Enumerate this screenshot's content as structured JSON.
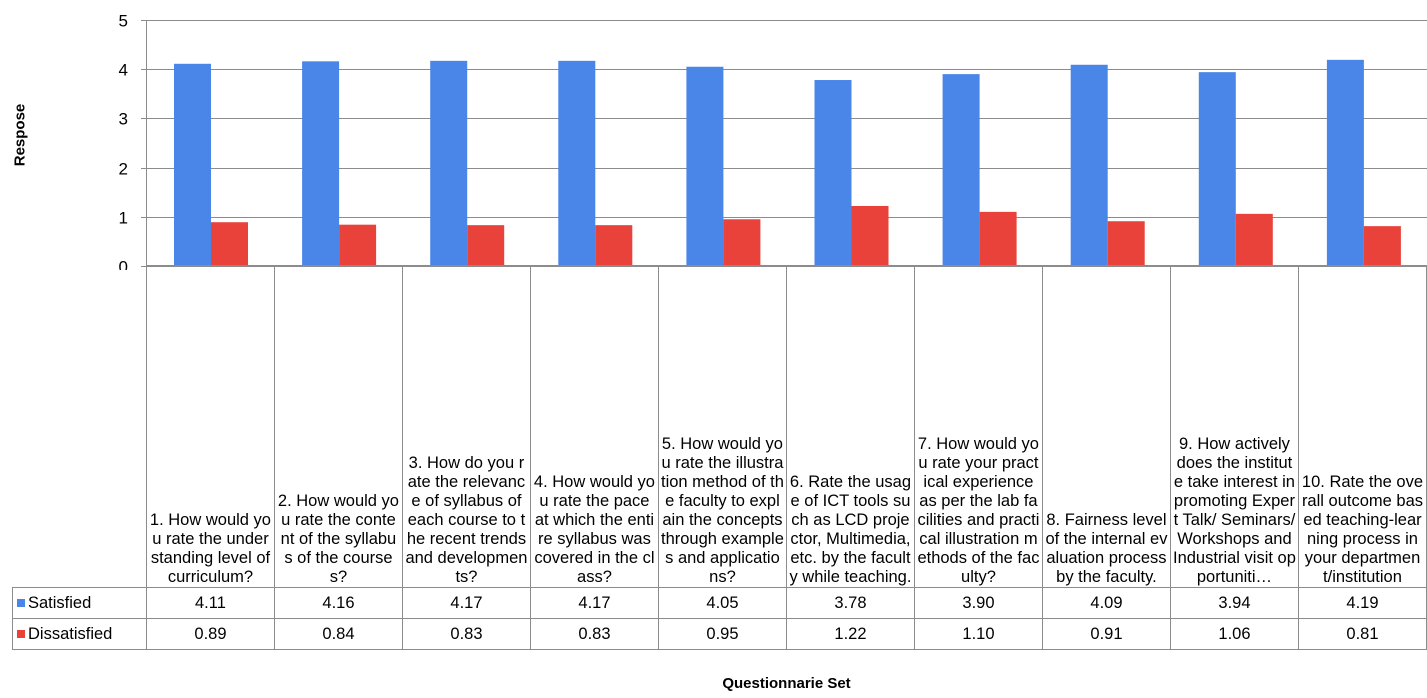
{
  "chart_data": {
    "type": "bar",
    "ylabel": "Respose",
    "xlabel": "Questionnarie Set",
    "ylim": [
      0,
      5
    ],
    "yticks": [
      0,
      1,
      2,
      3,
      4,
      5
    ],
    "grid": true,
    "legend": "data-table",
    "categories": [
      "1. How would you rate the understanding level of curriculum?",
      "2. How would you rate the content of the syllabus of the courses?",
      "3. How do you rate the relevance of syllabus of each course to the recent trends and developments?",
      "4. How would you rate the pace at which the entire syllabus was covered in the class?",
      "5. How would you rate the illustration method of the faculty to explain the concepts through examples and applications?",
      "6. Rate the usage of ICT tools such as LCD projector, Multimedia, etc. by the faculty while teaching.",
      "7. How would you rate your practical experience as per the lab facilities and practical illustration methods of the faculty?",
      "8. Fairness level of the internal evaluation process by the faculty.",
      "9. How actively does the institute take interest in promoting Expert Talk/ Seminars/Workshops and Industrial visit opportuniti…",
      "10. Rate the overall outcome based teaching-learning process in your department/institution"
    ],
    "series": [
      {
        "name": "Satisfied",
        "color": "#4a86e8",
        "values": [
          4.11,
          4.16,
          4.17,
          4.17,
          4.05,
          3.78,
          3.9,
          4.09,
          3.94,
          4.19
        ],
        "labels": [
          "4.11",
          "4.16",
          "4.17",
          "4.17",
          "4.05",
          "3.78",
          "3.90",
          "4.09",
          "3.94",
          "4.19"
        ]
      },
      {
        "name": "Dissatisfied",
        "color": "#e8423a",
        "values": [
          0.89,
          0.84,
          0.83,
          0.83,
          0.95,
          1.22,
          1.1,
          0.91,
          1.06,
          0.81
        ],
        "labels": [
          "0.89",
          "0.84",
          "0.83",
          "0.83",
          "0.95",
          "1.22",
          "1.10",
          "0.91",
          "1.06",
          "0.81"
        ]
      }
    ]
  }
}
